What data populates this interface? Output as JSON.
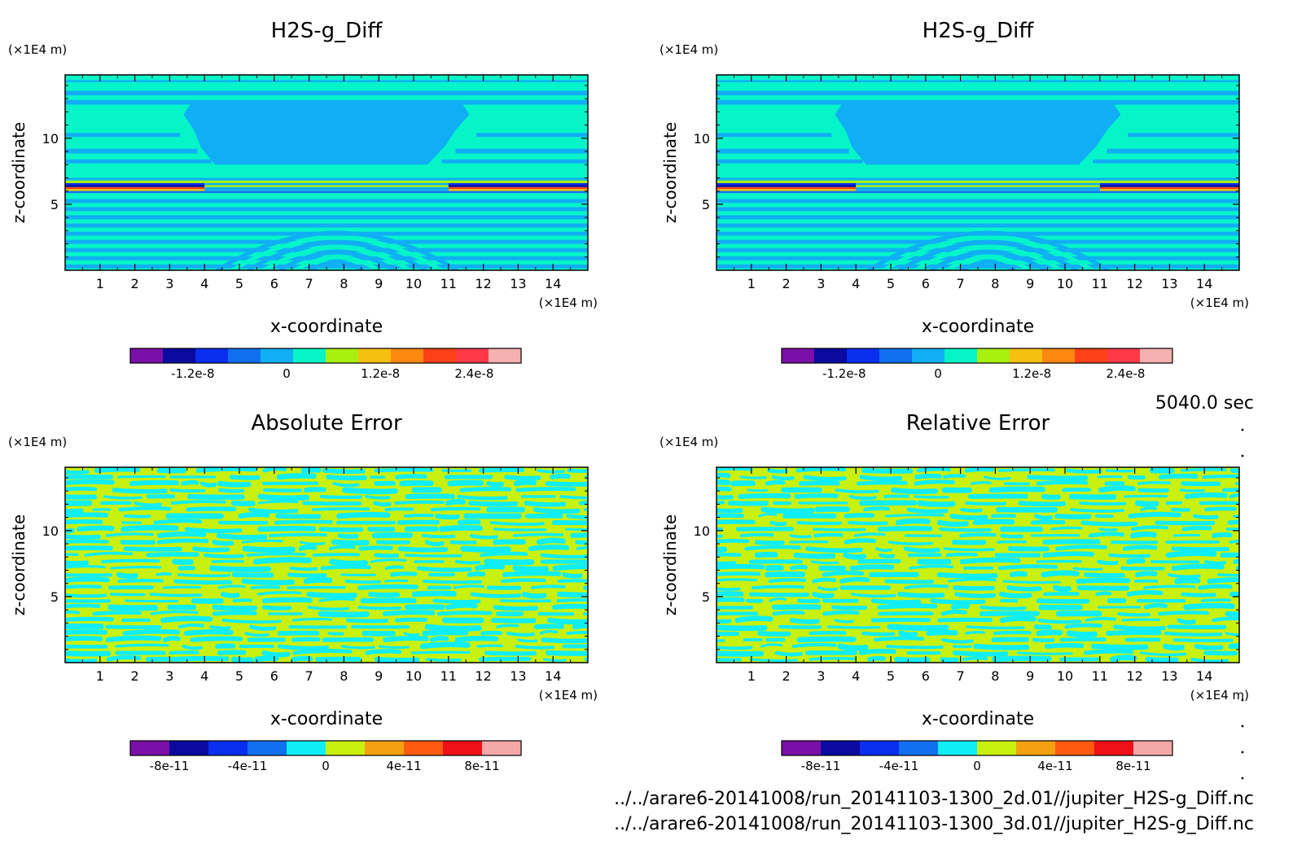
{
  "time_label": "5040.0 sec",
  "file_paths": [
    "../../arare6-20141008/run_20141103-1300_2d.01//jupiter_H2S-g_Diff.nc",
    "../../arare6-20141008/run_20141103-1300_3d.01//jupiter_H2S-g_Diff.nc"
  ],
  "chart_data": [
    {
      "type": "heatmap",
      "title": "H2S-g_Diff",
      "xlabel": "x-coordinate",
      "ylabel": "z-coordinate",
      "x_unit": "(×1E4 m)",
      "y_unit": "(×1E4 m)",
      "xlim": [
        0,
        15
      ],
      "ylim": [
        0,
        14.8
      ],
      "xticks": [
        1,
        2,
        3,
        4,
        5,
        6,
        7,
        8,
        9,
        10,
        11,
        12,
        13,
        14
      ],
      "yticks": [
        5,
        10
      ],
      "colorbar": {
        "colors": [
          "#7a10a8",
          "#0a0aa0",
          "#0a2ef0",
          "#1070f0",
          "#10aef5",
          "#05f5c8",
          "#a8f010",
          "#f5c010",
          "#ff8810",
          "#ff4018",
          "#ff3848",
          "#f5b0b0"
        ],
        "ticks": [
          -1.2e-08,
          0,
          1.2e-08,
          2.4e-08
        ],
        "tick_labels": [
          "-1.2e-8",
          "0",
          "1.2e-8",
          "2.4e-8"
        ],
        "range": [
          -2e-08,
          3e-08
        ]
      },
      "pattern": "layered"
    },
    {
      "type": "heatmap",
      "title": "H2S-g_Diff",
      "xlabel": "x-coordinate",
      "ylabel": "z-coordinate",
      "x_unit": "(×1E4 m)",
      "y_unit": "(×1E4 m)",
      "xlim": [
        0,
        15
      ],
      "ylim": [
        0,
        14.8
      ],
      "xticks": [
        1,
        2,
        3,
        4,
        5,
        6,
        7,
        8,
        9,
        10,
        11,
        12,
        13,
        14
      ],
      "yticks": [
        5,
        10
      ],
      "colorbar": {
        "colors": [
          "#7a10a8",
          "#0a0aa0",
          "#0a2ef0",
          "#1070f0",
          "#10aef5",
          "#05f5c8",
          "#a8f010",
          "#f5c010",
          "#ff8810",
          "#ff4018",
          "#ff3848",
          "#f5b0b0"
        ],
        "ticks": [
          -1.2e-08,
          0,
          1.2e-08,
          2.4e-08
        ],
        "tick_labels": [
          "-1.2e-8",
          "0",
          "1.2e-8",
          "2.4e-8"
        ],
        "range": [
          -2e-08,
          3e-08
        ]
      },
      "pattern": "layered"
    },
    {
      "type": "heatmap",
      "title": "Absolute Error",
      "xlabel": "x-coordinate",
      "ylabel": "z-coordinate",
      "x_unit": "(×1E4 m)",
      "y_unit": "(×1E4 m)",
      "xlim": [
        0,
        15
      ],
      "ylim": [
        0,
        14.8
      ],
      "xticks": [
        1,
        2,
        3,
        4,
        5,
        6,
        7,
        8,
        9,
        10,
        11,
        12,
        13,
        14
      ],
      "yticks": [
        5,
        10
      ],
      "colorbar": {
        "colors": [
          "#7a10a8",
          "#0a0aa0",
          "#0a2ef0",
          "#1070f0",
          "#10eef5",
          "#c8f010",
          "#f5a010",
          "#ff5a10",
          "#f01018",
          "#f5a8a8"
        ],
        "ticks": [
          -8e-11,
          -4e-11,
          0,
          4e-11,
          8e-11
        ],
        "tick_labels": [
          "-8e-11",
          "-4e-11",
          "0",
          "4e-11",
          "8e-11"
        ],
        "range": [
          -1e-10,
          1e-10
        ]
      },
      "pattern": "noise"
    },
    {
      "type": "heatmap",
      "title": "Relative Error",
      "xlabel": "x-coordinate",
      "ylabel": "z-coordinate",
      "x_unit": "(×1E4 m)",
      "y_unit": "(×1E4 m)",
      "xlim": [
        0,
        15
      ],
      "ylim": [
        0,
        14.8
      ],
      "xticks": [
        1,
        2,
        3,
        4,
        5,
        6,
        7,
        8,
        9,
        10,
        11,
        12,
        13,
        14
      ],
      "yticks": [
        5,
        10
      ],
      "colorbar": {
        "colors": [
          "#7a10a8",
          "#0a0aa0",
          "#0a2ef0",
          "#1070f0",
          "#10eef5",
          "#c8f010",
          "#f5a010",
          "#ff5a10",
          "#f01018",
          "#f5a8a8"
        ],
        "ticks": [
          -8e-11,
          -4e-11,
          0,
          4e-11,
          8e-11
        ],
        "tick_labels": [
          "-8e-11",
          "-4e-11",
          "0",
          "4e-11",
          "8e-11"
        ],
        "range": [
          -1e-10,
          1e-10
        ]
      },
      "pattern": "noise"
    }
  ]
}
